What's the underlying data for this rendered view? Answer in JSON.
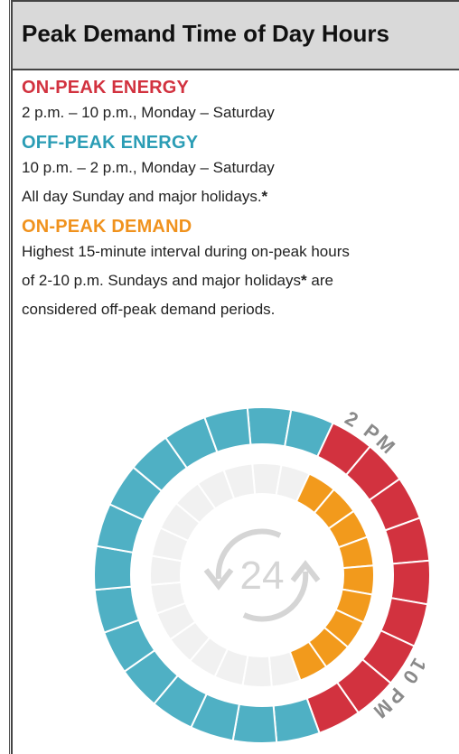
{
  "header": {
    "title": "Peak Demand Time of Day Hours"
  },
  "sections": [
    {
      "heading": "ON-PEAK ENERGY",
      "color": "#d2323f",
      "lines": [
        [
          {
            "text": "2 p.m. – 10 p.m., Monday – Saturday"
          }
        ]
      ]
    },
    {
      "heading": "OFF-PEAK ENERGY",
      "color": "#2b9db5",
      "lines": [
        [
          {
            "text": "10 p.m. – 2 p.m., Monday –  Saturday"
          }
        ],
        [
          {
            "text": "All day Sunday and major holidays."
          },
          {
            "text": "*",
            "bold": true
          }
        ]
      ]
    },
    {
      "heading": "ON-PEAK DEMAND",
      "color": "#f0921d",
      "lines": [
        [
          {
            "text": "Highest 15-minute interval during on-peak hours"
          }
        ],
        [
          {
            "text": "of 2-10 p.m. Sundays and major holidays"
          },
          {
            "text": "*",
            "bold": true
          },
          {
            "text": " are"
          }
        ],
        [
          {
            "text": "considered off-peak demand periods."
          }
        ]
      ]
    }
  ],
  "clock": {
    "center_label": "24",
    "start_label": "2 PM",
    "end_label": "10 PM",
    "on_color": "#d2323f",
    "off_color": "#4fb0c4",
    "demand_color": "#f29a1c",
    "inner_color": "#f1f1f1"
  }
}
